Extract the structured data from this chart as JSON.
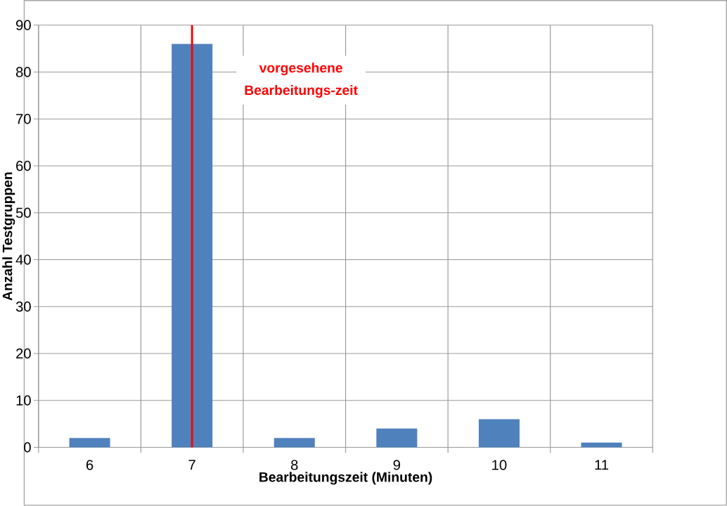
{
  "chart_data": {
    "type": "bar",
    "xlabel": "Bearbeitungszeit (Minuten)",
    "ylabel": "Anzahl Testgruppen",
    "categories": [
      "6",
      "7",
      "8",
      "9",
      "10",
      "11"
    ],
    "values": [
      2,
      86,
      2,
      4,
      6,
      1
    ],
    "color": "#4f81bd",
    "ylim": [
      0,
      90
    ],
    "yticks": [
      0,
      10,
      20,
      30,
      40,
      50,
      60,
      70,
      80,
      90
    ],
    "grid": true,
    "ref_lines": [
      {
        "axis": "x",
        "value": "7",
        "label": "vorgesehene Bearbeitungs-zeit",
        "color": "#ff0000"
      }
    ]
  }
}
